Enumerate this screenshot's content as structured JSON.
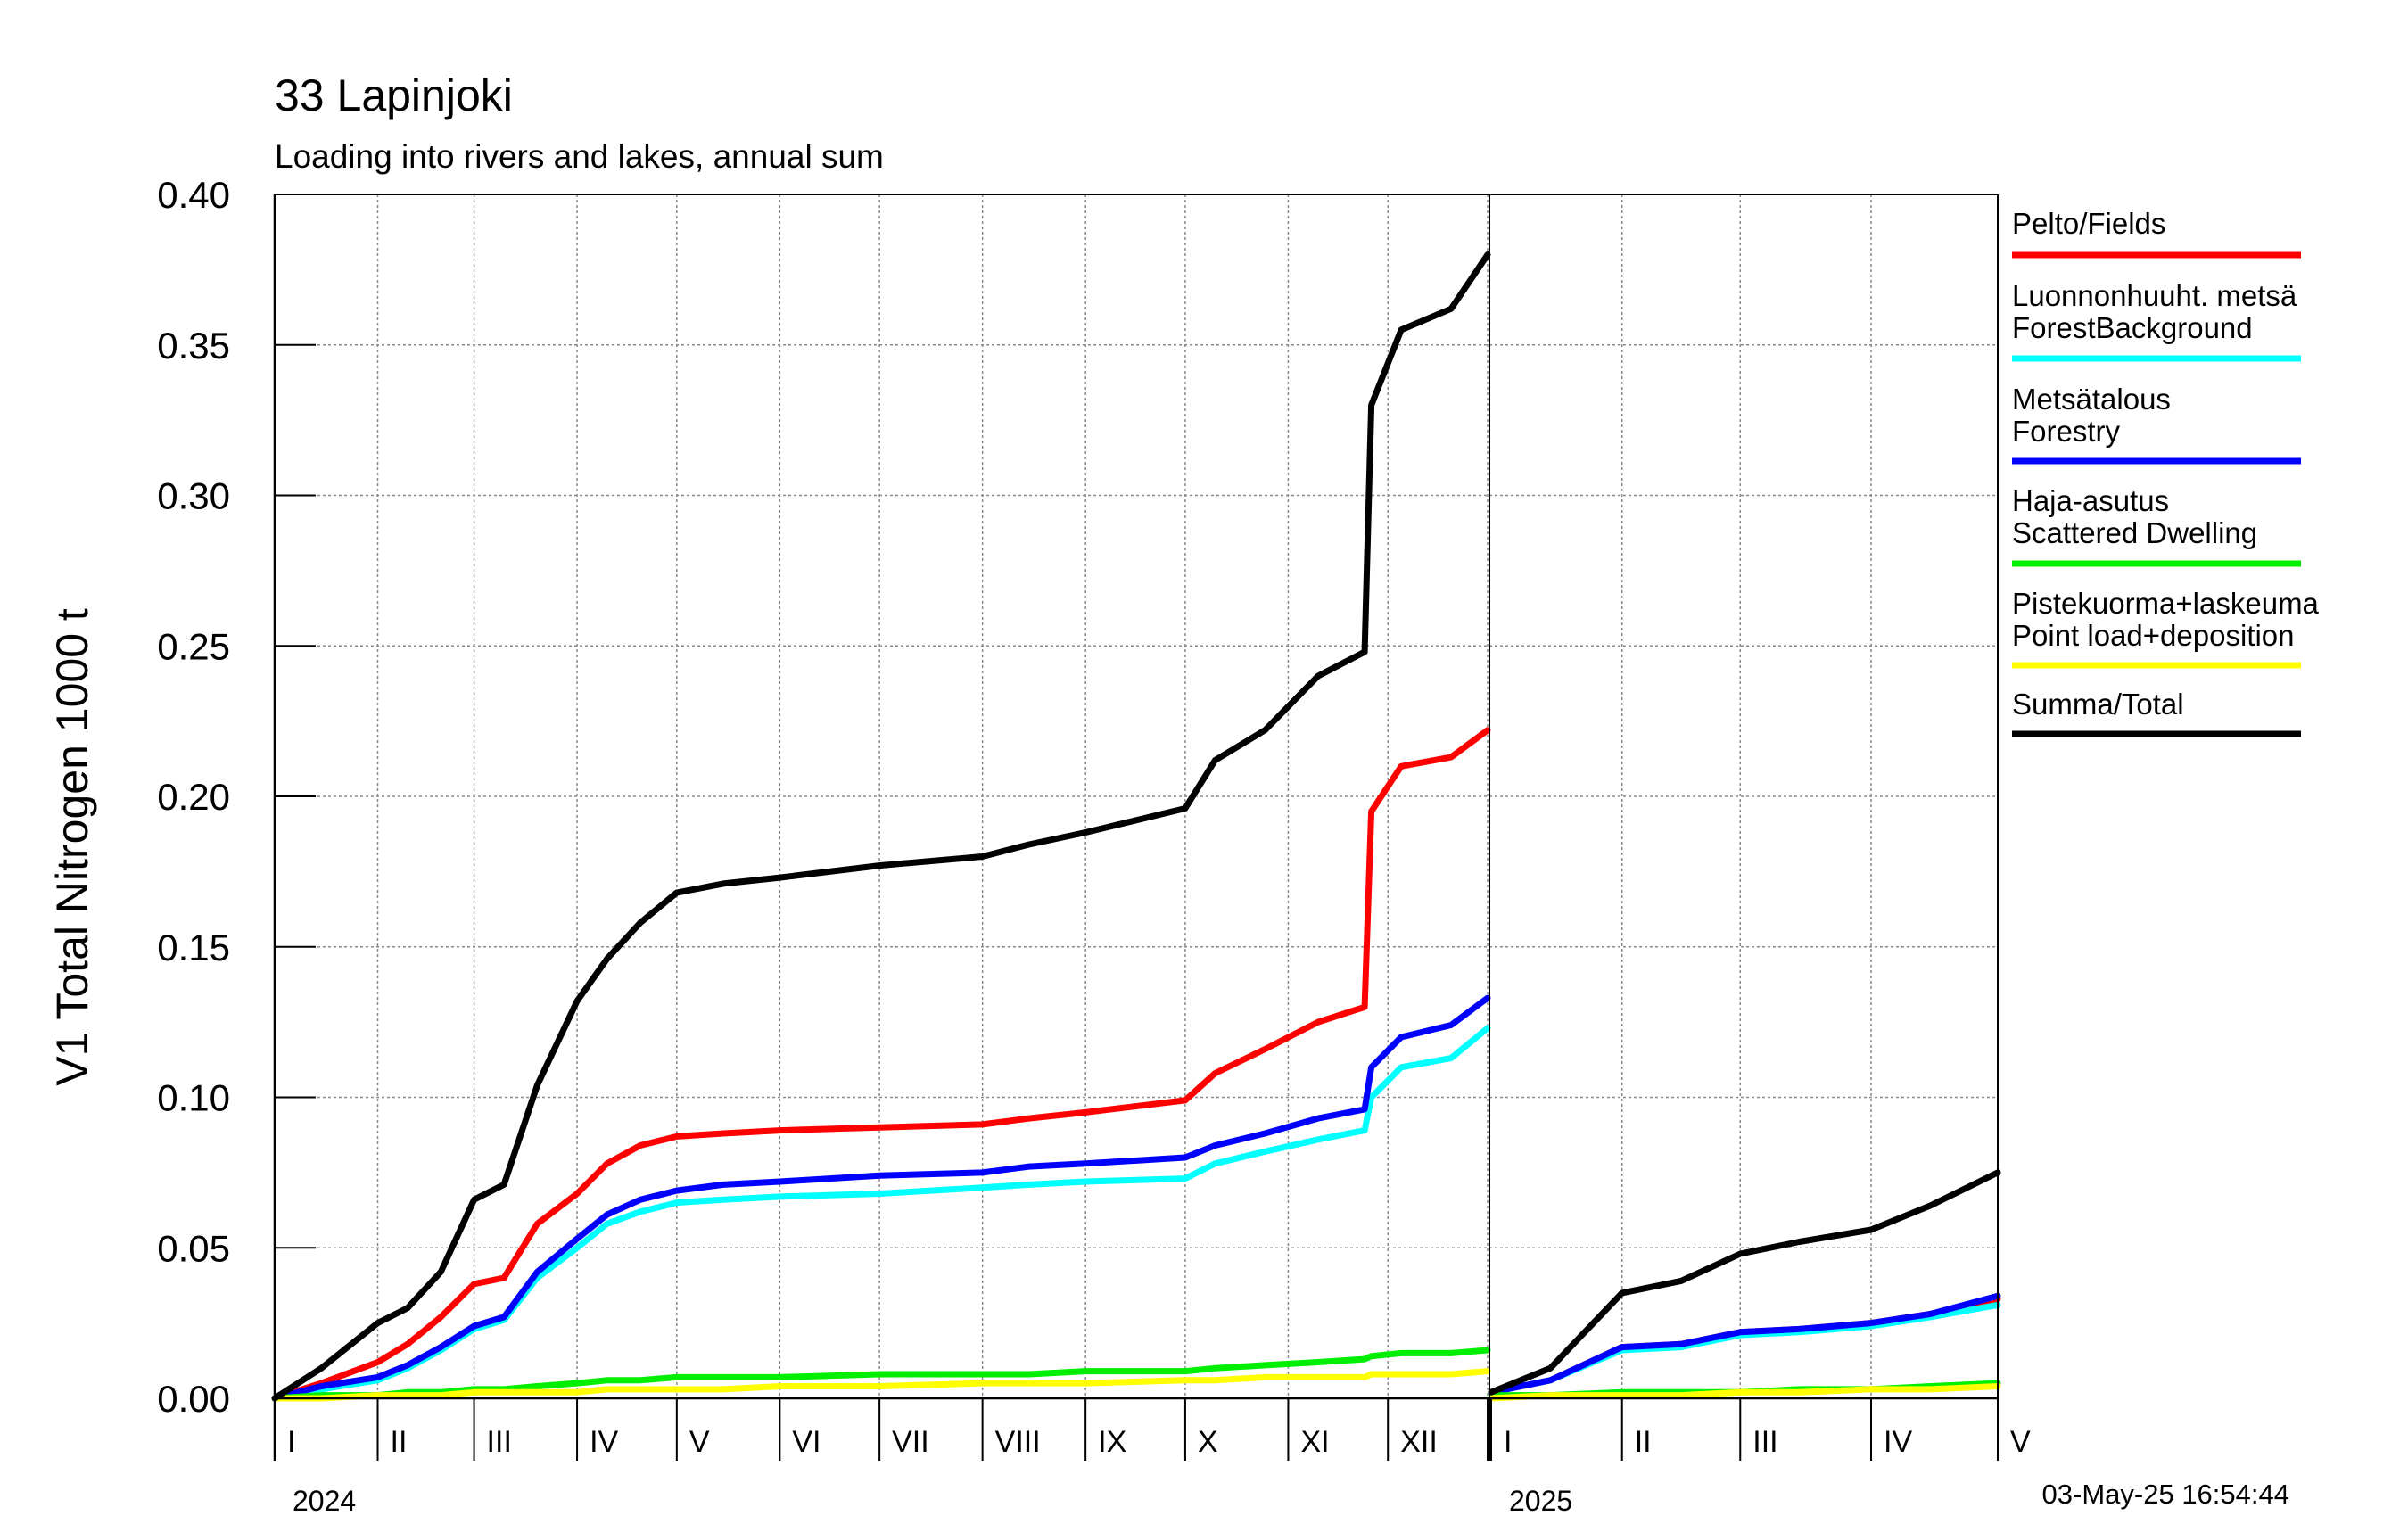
{
  "chart_data": {
    "type": "line",
    "title": "33 Lapinjoki",
    "subtitle": "Loading into rivers and lakes, annual sum",
    "ylabel": "V1 Total Nitrogen 1000 t",
    "xlabel": "",
    "ylim": [
      0,
      0.4
    ],
    "yticks": [
      "0.00",
      "0.05",
      "0.10",
      "0.15",
      "0.20",
      "0.25",
      "0.30",
      "0.35",
      "0.40"
    ],
    "grid": true,
    "legend_position": "right",
    "timestamp": "03-May-25 16:54:44",
    "periods": [
      {
        "year": "2024",
        "months": [
          "I",
          "II",
          "III",
          "IV",
          "V",
          "VI",
          "VII",
          "VIII",
          "IX",
          "X",
          "XI",
          "XII"
        ],
        "x": [
          "2024-01-01",
          "2024-01-15",
          "2024-02-01",
          "2024-02-10",
          "2024-02-20",
          "2024-03-01",
          "2024-03-10",
          "2024-03-20",
          "2024-04-01",
          "2024-04-10",
          "2024-04-20",
          "2024-05-01",
          "2024-05-15",
          "2024-06-01",
          "2024-07-01",
          "2024-08-01",
          "2024-08-15",
          "2024-09-01",
          "2024-10-01",
          "2024-10-10",
          "2024-10-25",
          "2024-11-10",
          "2024-11-24",
          "2024-11-26",
          "2024-12-05",
          "2024-12-20",
          "2024-12-31"
        ],
        "series": [
          {
            "name": "Pelto/Fields",
            "color": "#ff0000",
            "values": [
              0.0,
              0.005,
              0.012,
              0.018,
              0.027,
              0.038,
              0.04,
              0.058,
              0.068,
              0.078,
              0.084,
              0.087,
              0.088,
              0.089,
              0.09,
              0.091,
              0.093,
              0.095,
              0.099,
              0.108,
              0.116,
              0.125,
              0.13,
              0.195,
              0.21,
              0.213,
              0.222
            ]
          },
          {
            "name": "Luonnonhuuht. metsä ForestBackground",
            "color": "#00ffff",
            "values": [
              0.0,
              0.003,
              0.006,
              0.01,
              0.016,
              0.023,
              0.026,
              0.04,
              0.05,
              0.058,
              0.062,
              0.065,
              0.066,
              0.067,
              0.068,
              0.07,
              0.071,
              0.072,
              0.073,
              0.078,
              0.082,
              0.086,
              0.089,
              0.1,
              0.11,
              0.113,
              0.123
            ]
          },
          {
            "name": "Metsätalous Forestry",
            "color": "#0000ff",
            "values": [
              0.0,
              0.004,
              0.007,
              0.011,
              0.017,
              0.024,
              0.027,
              0.042,
              0.053,
              0.061,
              0.066,
              0.069,
              0.071,
              0.072,
              0.074,
              0.075,
              0.077,
              0.078,
              0.08,
              0.084,
              0.088,
              0.093,
              0.096,
              0.11,
              0.12,
              0.124,
              0.133
            ]
          },
          {
            "name": "Haja-asutus Scattered Dwelling",
            "color": "#00ee00",
            "values": [
              0.0,
              0.001,
              0.001,
              0.002,
              0.002,
              0.003,
              0.003,
              0.004,
              0.005,
              0.006,
              0.006,
              0.007,
              0.007,
              0.007,
              0.008,
              0.008,
              0.008,
              0.009,
              0.009,
              0.01,
              0.011,
              0.012,
              0.013,
              0.014,
              0.015,
              0.015,
              0.016
            ]
          },
          {
            "name": "Pistekuorma+laskeuma Point load+deposition",
            "color": "#ffff00",
            "values": [
              0.0,
              0.0,
              0.001,
              0.001,
              0.001,
              0.002,
              0.002,
              0.002,
              0.002,
              0.003,
              0.003,
              0.003,
              0.003,
              0.004,
              0.004,
              0.005,
              0.005,
              0.005,
              0.006,
              0.006,
              0.007,
              0.007,
              0.007,
              0.008,
              0.008,
              0.008,
              0.009
            ]
          },
          {
            "name": "Summa/Total",
            "color": "#000000",
            "values": [
              0.0,
              0.01,
              0.025,
              0.03,
              0.042,
              0.066,
              0.071,
              0.104,
              0.132,
              0.146,
              0.158,
              0.168,
              0.171,
              0.173,
              0.177,
              0.18,
              0.184,
              0.188,
              0.196,
              0.212,
              0.222,
              0.24,
              0.248,
              0.33,
              0.355,
              0.362,
              0.38
            ]
          }
        ]
      },
      {
        "year": "2025",
        "months": [
          "I",
          "II",
          "III",
          "IV",
          "V"
        ],
        "x": [
          "2025-01-01",
          "2025-01-15",
          "2025-02-01",
          "2025-02-15",
          "2025-03-01",
          "2025-03-15",
          "2025-04-01",
          "2025-04-15",
          "2025-05-01"
        ],
        "series": [
          {
            "name": "Pelto/Fields",
            "color": "#ff0000",
            "values": [
              0.002,
              0.006,
              0.017,
              0.018,
              0.022,
              0.023,
              0.025,
              0.028,
              0.033
            ]
          },
          {
            "name": "Luonnonhuuht. metsä ForestBackground",
            "color": "#00ffff",
            "values": [
              0.002,
              0.006,
              0.016,
              0.017,
              0.021,
              0.022,
              0.024,
              0.027,
              0.031
            ]
          },
          {
            "name": "Metsätalous Forestry",
            "color": "#0000ff",
            "values": [
              0.002,
              0.006,
              0.017,
              0.018,
              0.022,
              0.023,
              0.025,
              0.028,
              0.034
            ]
          },
          {
            "name": "Haja-asutus Scattered Dwelling",
            "color": "#00ee00",
            "values": [
              0.001,
              0.001,
              0.002,
              0.002,
              0.002,
              0.003,
              0.003,
              0.004,
              0.005
            ]
          },
          {
            "name": "Pistekuorma+laskeuma Point load+deposition",
            "color": "#ffff00",
            "values": [
              0.0,
              0.001,
              0.001,
              0.001,
              0.002,
              0.002,
              0.003,
              0.003,
              0.004
            ]
          },
          {
            "name": "Summa/Total",
            "color": "#000000",
            "values": [
              0.002,
              0.01,
              0.035,
              0.039,
              0.048,
              0.052,
              0.056,
              0.064,
              0.075
            ]
          }
        ]
      }
    ],
    "legend": [
      {
        "lines": [
          "Pelto/Fields"
        ],
        "color": "#ff0000"
      },
      {
        "lines": [
          "Luonnonhuuht. metsä",
          "ForestBackground"
        ],
        "color": "#00ffff"
      },
      {
        "lines": [
          "Metsätalous",
          "Forestry"
        ],
        "color": "#0000ff"
      },
      {
        "lines": [
          "Haja-asutus",
          "Scattered Dwelling"
        ],
        "color": "#00ee00"
      },
      {
        "lines": [
          "Pistekuorma+laskeuma",
          "Point load+deposition"
        ],
        "color": "#ffff00"
      },
      {
        "lines": [
          "Summa/Total"
        ],
        "color": "#000000"
      }
    ]
  }
}
